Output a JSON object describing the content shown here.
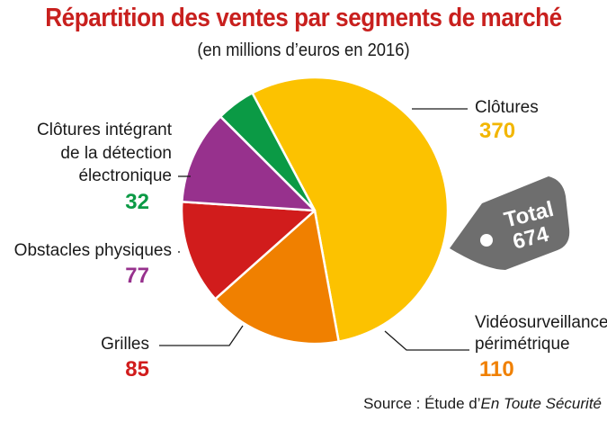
{
  "title": "Répartition des ventes par segments de marché",
  "subtitle": "(en millions d’euros en 2016)",
  "source_prefix": "Source : Étude d’",
  "source_italic": "En Toute Sécurité",
  "total": {
    "label": "Total",
    "value": "674"
  },
  "colors": {
    "title": "#c8201e",
    "tag": "#6e6e6e",
    "clotures": "#fcc200",
    "video": "#f08000",
    "grilles": "#d11c1c",
    "obstacles": "#97318d",
    "detection": "#0b9a45"
  },
  "chart_data": {
    "type": "pie",
    "title": "Répartition des ventes par segments de marché",
    "subtitle": "(en millions d’euros en 2016)",
    "slices": [
      {
        "label": "Clôtures",
        "label_lines": [
          "Clôtures"
        ],
        "value": 370,
        "color": "#fcc200"
      },
      {
        "label": "Vidéosurveillance périmétrique",
        "label_lines": [
          "Vidéosurveillance",
          "périmétrique"
        ],
        "value": 110,
        "color": "#f08000"
      },
      {
        "label": "Grilles",
        "label_lines": [
          "Grilles"
        ],
        "value": 85,
        "color": "#d11c1c"
      },
      {
        "label": "Obstacles physiques",
        "label_lines": [
          "Obstacles physiques"
        ],
        "value": 77,
        "color": "#97318d"
      },
      {
        "label": "Clôtures intégrant de la détection électronique",
        "label_lines": [
          "Clôtures intégrant",
          "de la détection",
          "électronique"
        ],
        "value": 32,
        "color": "#0b9a45"
      }
    ],
    "total": 674
  }
}
